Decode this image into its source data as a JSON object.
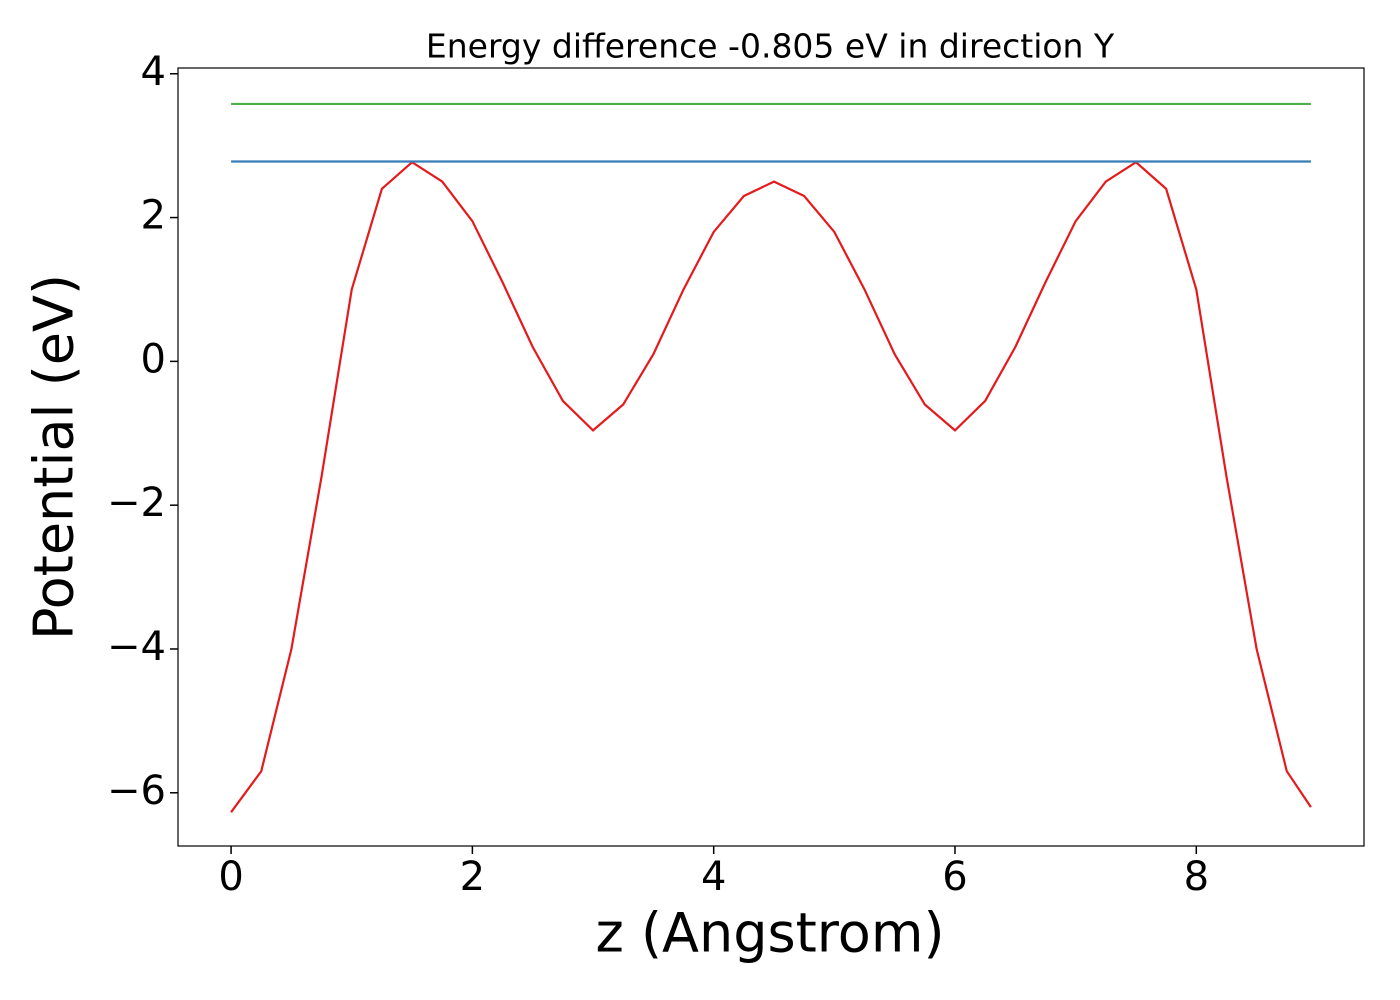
{
  "chart_data": {
    "type": "line",
    "title": "Energy difference -0.805 eV in direction Y",
    "xlabel": "z (Angstrom)",
    "ylabel": "Potential (eV)",
    "xlim": [
      -0.44,
      9.39
    ],
    "ylim": [
      -6.74,
      4.08
    ],
    "xticks": [
      0,
      2,
      4,
      6,
      8
    ],
    "yticks": [
      -6,
      -4,
      -2,
      0,
      2,
      4
    ],
    "grid": false,
    "series": [
      {
        "color": "#e41a1c",
        "x": [
          0,
          0.25,
          0.5,
          0.75,
          1.0,
          1.25,
          1.5,
          1.75,
          2.0,
          2.25,
          2.5,
          2.75,
          3.0,
          3.25,
          3.5,
          3.75,
          4.0,
          4.25,
          4.5,
          4.75,
          5.0,
          5.25,
          5.5,
          5.75,
          6.0,
          6.25,
          6.5,
          6.75,
          7.0,
          7.25,
          7.5,
          7.75,
          8.0,
          8.25,
          8.5,
          8.75,
          8.95
        ],
        "values": [
          -6.27,
          -5.7,
          -4.0,
          -1.6,
          1.0,
          2.4,
          2.77,
          2.5,
          1.95,
          1.1,
          0.2,
          -0.55,
          -0.96,
          -0.6,
          0.1,
          1.0,
          1.8,
          2.3,
          2.5,
          2.3,
          1.8,
          1.0,
          0.1,
          -0.6,
          -0.96,
          -0.55,
          0.2,
          1.1,
          1.95,
          2.5,
          2.77,
          2.4,
          1.0,
          -1.6,
          -4.0,
          -5.7,
          -6.2
        ]
      },
      {
        "color": "#377eb8",
        "x": [
          0,
          8.95
        ],
        "values": [
          2.78,
          2.78
        ]
      },
      {
        "color": "#4daf4a",
        "x": [
          0,
          8.95
        ],
        "values": [
          3.58,
          3.58
        ]
      }
    ]
  }
}
